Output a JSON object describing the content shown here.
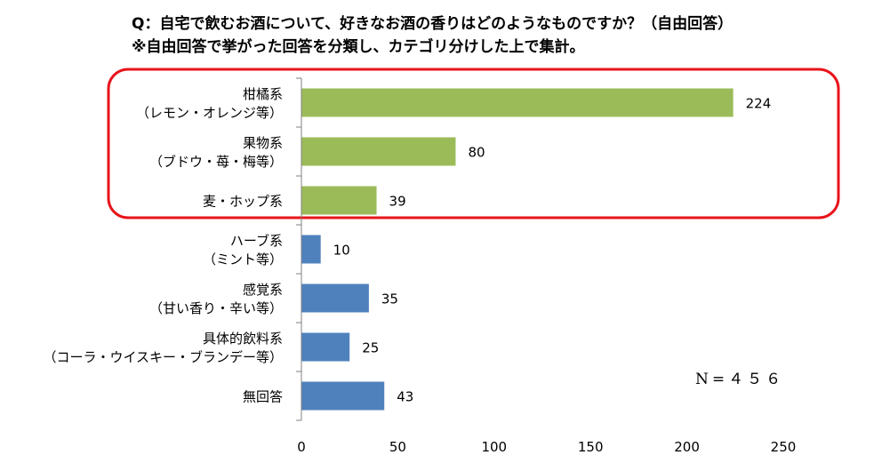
{
  "title_lines": [
    "Q：自宅で飲むお酒について、好きなお酒の香りはどのようなものですか？（自由回答）",
    "※自由回答で挙がった回答を分類し、カテゴリ分けした上で集計。"
  ],
  "note": "N=４５６",
  "chart_data": {
    "type": "bar",
    "orientation": "horizontal",
    "categories": [
      [
        "柑橘系",
        "（レモン・オレンジ等）"
      ],
      [
        "果物系",
        "（ブドウ・苺・梅等）"
      ],
      [
        "麦・ホップ系"
      ],
      [
        "ハーブ系",
        "（ミント等）"
      ],
      [
        "感覚系",
        "（甘い香り・辛い等）"
      ],
      [
        "具体的飲料系",
        "（コーラ・ウイスキー・ブランデー等）"
      ],
      [
        "無回答"
      ]
    ],
    "values": [
      224,
      80,
      39,
      10,
      35,
      25,
      43
    ],
    "bar_colors": [
      "#9bbb59",
      "#9bbb59",
      "#9bbb59",
      "#4f81bd",
      "#4f81bd",
      "#4f81bd",
      "#4f81bd"
    ],
    "highlight": {
      "categories": [
        0,
        1,
        2
      ],
      "color": "#e8141b"
    },
    "xlim": [
      0,
      250
    ],
    "xticks": [
      0,
      50,
      100,
      150,
      200,
      250
    ],
    "data_labels": true,
    "grid": false
  }
}
